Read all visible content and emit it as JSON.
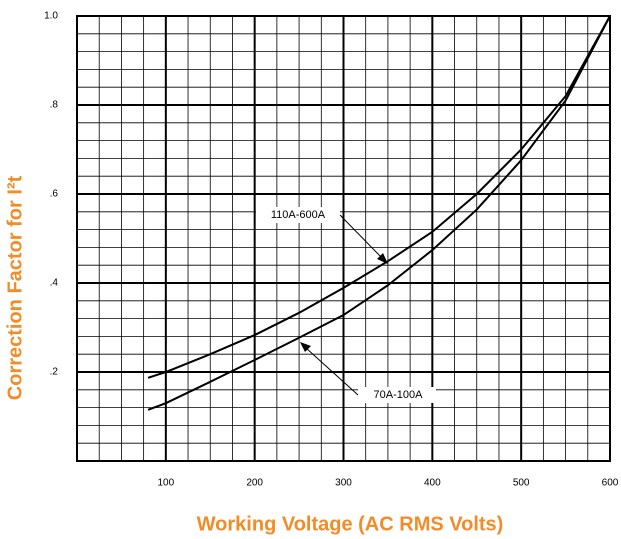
{
  "chart_data": {
    "type": "line",
    "xlabel": "Working Voltage (AC RMS Volts)",
    "ylabel": "Correction Factor for I²t",
    "xlim": [
      0,
      600
    ],
    "ylim": [
      0,
      1
    ],
    "xticks": [
      100,
      200,
      300,
      400,
      500,
      600
    ],
    "yticks": [
      {
        "value": 0.2,
        "label": ".2"
      },
      {
        "value": 0.4,
        "label": ".4"
      },
      {
        "value": 0.6,
        "label": ".6"
      },
      {
        "value": 0.8,
        "label": ".8"
      },
      {
        "value": 1.0,
        "label": "1.0"
      }
    ],
    "grid": true,
    "minor_grid": {
      "x": 25,
      "y": 0.04
    },
    "x": [
      80,
      100,
      150,
      200,
      250,
      300,
      350,
      400,
      450,
      500,
      550,
      600
    ],
    "series": [
      {
        "name": "110A-600A",
        "color": "#000000",
        "values": [
          0.187,
          0.2,
          0.24,
          0.283,
          0.333,
          0.389,
          0.449,
          0.515,
          0.6,
          0.7,
          0.82,
          1.0
        ]
      },
      {
        "name": "70A-100A",
        "color": "#000000",
        "values": [
          0.115,
          0.13,
          0.178,
          0.227,
          0.277,
          0.328,
          0.395,
          0.474,
          0.565,
          0.676,
          0.81,
          1.0
        ]
      }
    ]
  }
}
